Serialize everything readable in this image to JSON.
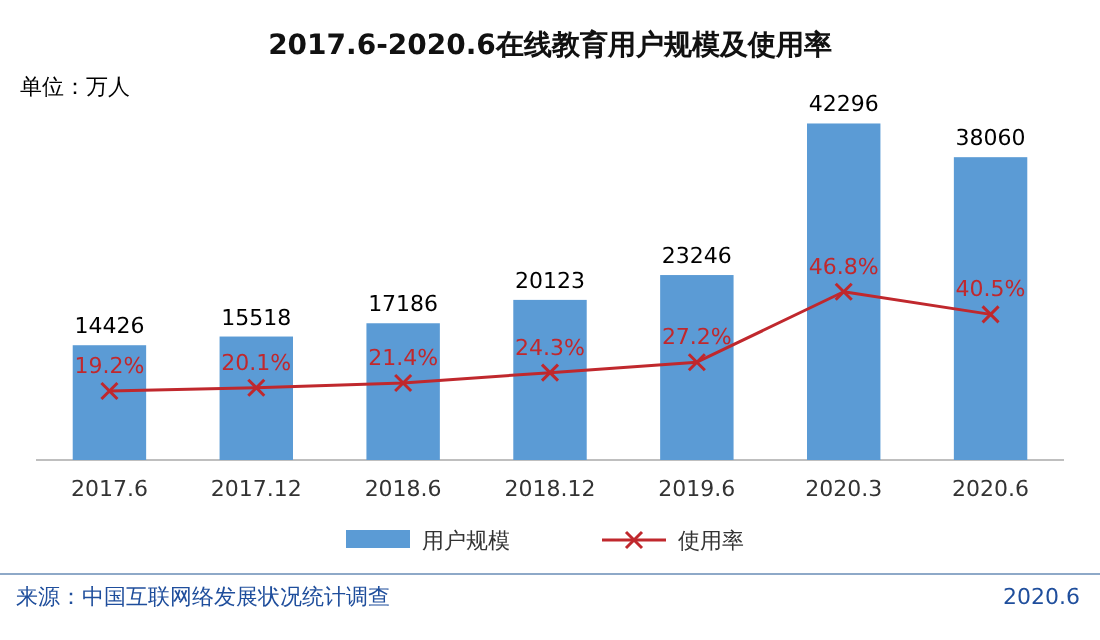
{
  "chart_data": {
    "type": "bar",
    "title": "2017.6-2020.6在线教育用户规模及使用率",
    "annotations": [
      "单位：万人",
      "来源：中国互联网络发展状况统计调查",
      "2020.6"
    ],
    "categories": [
      "2017.6",
      "2017.12",
      "2018.6",
      "2018.12",
      "2019.6",
      "2020.3",
      "2020.6"
    ],
    "legend": "bottom",
    "series": [
      {
        "name": "用户规模",
        "color": "#5b9bd5",
        "values": [
          14426,
          15518,
          17186,
          20123,
          23246,
          42296,
          38060
        ],
        "value_labels": [
          "14426",
          "15518",
          "17186",
          "20123",
          "23246",
          "42296",
          "38060"
        ]
      },
      {
        "name": "使用率",
        "type": "line",
        "axis": "y2",
        "color": "#c0282d",
        "marker": "cross",
        "line_style": "solid",
        "values": [
          19.2,
          20.1,
          21.4,
          24.3,
          27.2,
          46.8,
          40.5
        ],
        "value_labels": [
          "19.2%",
          "20.1%",
          "21.4%",
          "24.3%",
          "27.2%",
          "46.8%",
          "40.5%"
        ]
      }
    ]
  }
}
